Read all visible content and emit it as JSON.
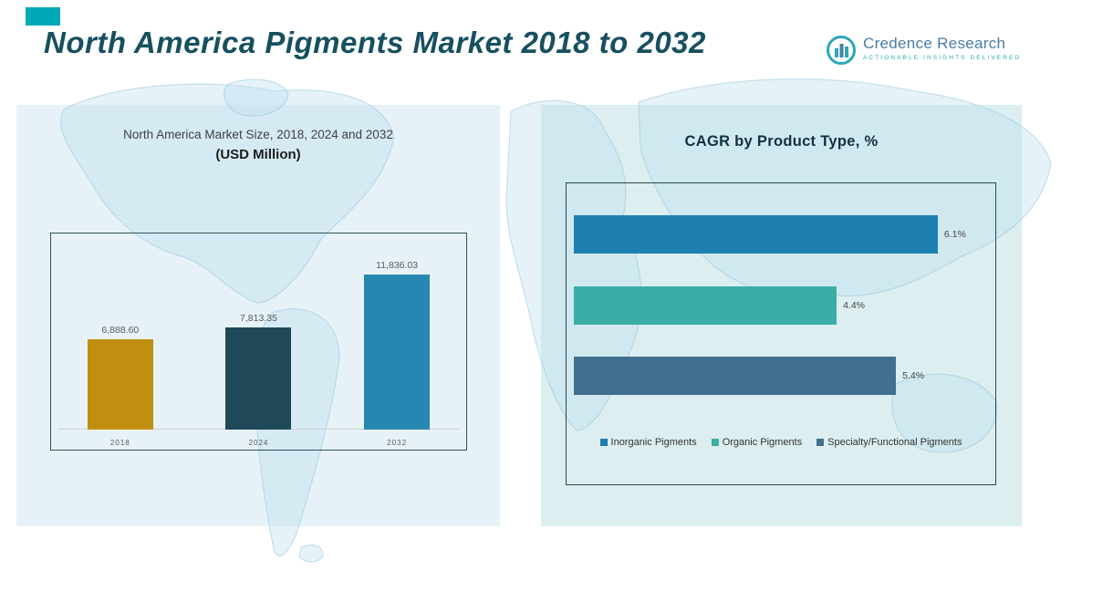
{
  "header": {
    "title": "North America Pigments Market 2018 to 2032",
    "accent_color": "#00a9b7"
  },
  "logo": {
    "brand": "Credence Research",
    "tagline": "Actionable Insights Delivered"
  },
  "chart_data": [
    {
      "type": "bar",
      "orientation": "vertical",
      "title": "North America Market Size, 2018, 2024 and 2032",
      "subtitle": "(USD Million)",
      "categories": [
        "2018",
        "2024",
        "2032"
      ],
      "values": [
        6888.6,
        7813.35,
        11836.03
      ],
      "value_labels": [
        "6,888.60",
        "7,813.35",
        "11,836.03"
      ],
      "colors": [
        "#c08f10",
        "#1f4959",
        "#2787b0"
      ],
      "xlabel": "",
      "ylabel": "",
      "ylim": [
        0,
        15000
      ],
      "grid": false,
      "legend_position": "none"
    },
    {
      "type": "bar",
      "orientation": "horizontal",
      "title": "CAGR by Product Type, %",
      "categories": [
        "Inorganic Pigments",
        "Organic Pigments",
        "Specialty/Functional Pigments"
      ],
      "values": [
        6.1,
        4.4,
        5.4
      ],
      "value_labels": [
        "6.1%",
        "4.4%",
        "5.4%"
      ],
      "colors": [
        "#1d7fb0",
        "#3aada6",
        "#41708f"
      ],
      "xlabel": "",
      "ylabel": "",
      "xlim": [
        0,
        7
      ],
      "grid": false,
      "legend_position": "bottom",
      "legend": [
        "Inorganic Pigments",
        "Organic Pigments",
        "Specialty/Functional Pigments"
      ]
    }
  ]
}
